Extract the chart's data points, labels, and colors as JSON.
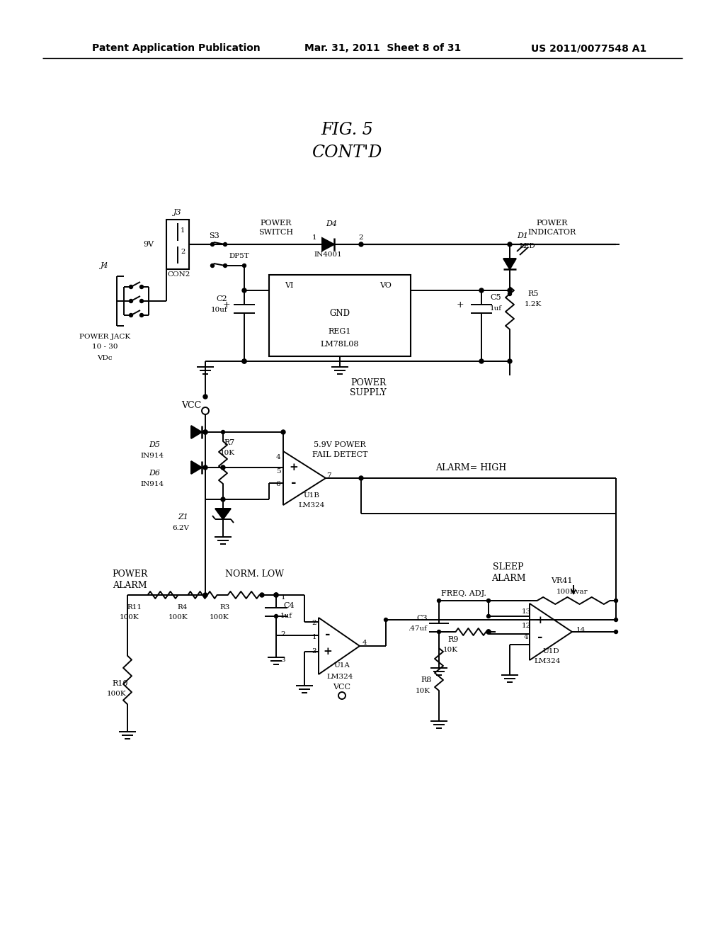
{
  "bg_color": "#ffffff",
  "header_left": "Patent Application Publication",
  "header_center": "Mar. 31, 2011  Sheet 8 of 31",
  "header_right": "US 2011/0077548 A1",
  "fig_title": "FIG. 5",
  "fig_subtitle": "CONT'D"
}
